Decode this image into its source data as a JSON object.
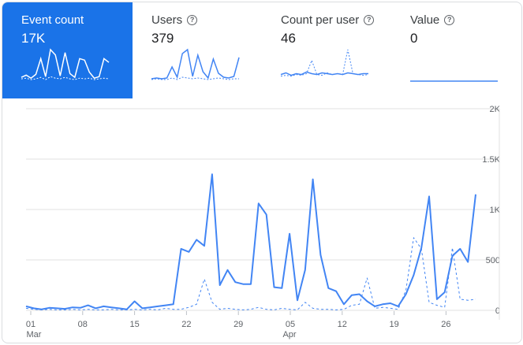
{
  "metrics": [
    {
      "label": "Event count",
      "value": "17K",
      "help_icon": false,
      "selected": true
    },
    {
      "label": "Users",
      "value": "379",
      "help_icon": true,
      "help_glyph": "?",
      "selected": false
    },
    {
      "label": "Count per user",
      "value": "46",
      "help_icon": true,
      "help_glyph": "?",
      "selected": false
    },
    {
      "label": "Value",
      "value": "0",
      "help_icon": true,
      "help_glyph": "?",
      "selected": false
    }
  ],
  "colors": {
    "accent": "#1a73e8",
    "series": "#4285f4",
    "grid": "#e0e0e0",
    "tick_text": "#5f6368",
    "sparkline_on_accent": "#ffffff"
  },
  "sparklines": {
    "event_count": {
      "current": [
        5,
        8,
        4,
        9,
        30,
        6,
        42,
        35,
        7,
        38,
        10,
        5,
        30,
        28,
        12,
        4,
        6,
        30,
        25
      ],
      "previous": [
        3,
        4,
        2,
        3,
        5,
        2,
        6,
        4,
        3,
        5,
        3,
        2,
        4,
        3,
        4,
        2,
        3,
        4,
        3
      ]
    },
    "users": {
      "current": [
        3,
        4,
        3,
        4,
        18,
        5,
        35,
        40,
        6,
        33,
        12,
        4,
        28,
        10,
        5,
        4,
        6,
        30
      ],
      "previous": [
        2,
        3,
        2,
        2,
        4,
        2,
        5,
        4,
        3,
        4,
        3,
        2,
        3,
        4,
        3,
        2,
        3,
        3
      ]
    },
    "count_per_user": {
      "current": [
        8,
        10,
        7,
        9,
        8,
        11,
        9,
        8,
        10,
        9,
        8,
        9,
        8,
        10,
        9,
        8,
        9,
        9
      ],
      "previous": [
        6,
        7,
        6,
        8,
        7,
        9,
        25,
        8,
        7,
        10,
        8,
        9,
        8,
        38,
        9,
        8,
        7,
        8
      ]
    },
    "value": {
      "current": [
        0,
        0,
        0,
        0,
        0,
        0,
        0,
        0,
        0,
        0
      ],
      "previous": [
        0,
        0,
        0,
        0,
        0,
        0,
        0,
        0,
        0,
        0
      ]
    }
  },
  "chart_data": {
    "type": "line",
    "x_ticks": [
      "01",
      "08",
      "15",
      "22",
      "29",
      "05",
      "12",
      "19",
      "26"
    ],
    "x_month_labels": [
      "Mar",
      "Apr"
    ],
    "y_ticks": [
      "0",
      "500",
      "1K",
      "1.5K",
      "2K"
    ],
    "ylim": [
      0,
      2000
    ],
    "grid": true,
    "series": [
      {
        "style": "solid",
        "values": [
          40,
          20,
          10,
          25,
          20,
          15,
          30,
          25,
          50,
          20,
          40,
          30,
          20,
          10,
          90,
          20,
          30,
          40,
          50,
          60,
          610,
          580,
          700,
          640,
          1350,
          250,
          400,
          280,
          260,
          260,
          1060,
          950,
          230,
          220,
          760,
          100,
          400,
          1300,
          550,
          220,
          190,
          60,
          150,
          160,
          90,
          40,
          60,
          70,
          40,
          160,
          350,
          620,
          1130,
          110,
          180,
          540,
          610,
          480,
          1150
        ]
      },
      {
        "style": "dashed",
        "values": [
          20,
          10,
          5,
          10,
          5,
          5,
          10,
          5,
          10,
          5,
          5,
          10,
          5,
          5,
          10,
          5,
          10,
          5,
          20,
          10,
          10,
          30,
          60,
          310,
          80,
          10,
          20,
          10,
          5,
          10,
          30,
          10,
          5,
          20,
          10,
          5,
          80,
          20,
          10,
          10,
          5,
          10,
          50,
          60,
          320,
          20,
          30,
          20,
          10,
          200,
          720,
          610,
          80,
          50,
          30,
          620,
          110,
          100,
          110
        ]
      }
    ]
  }
}
